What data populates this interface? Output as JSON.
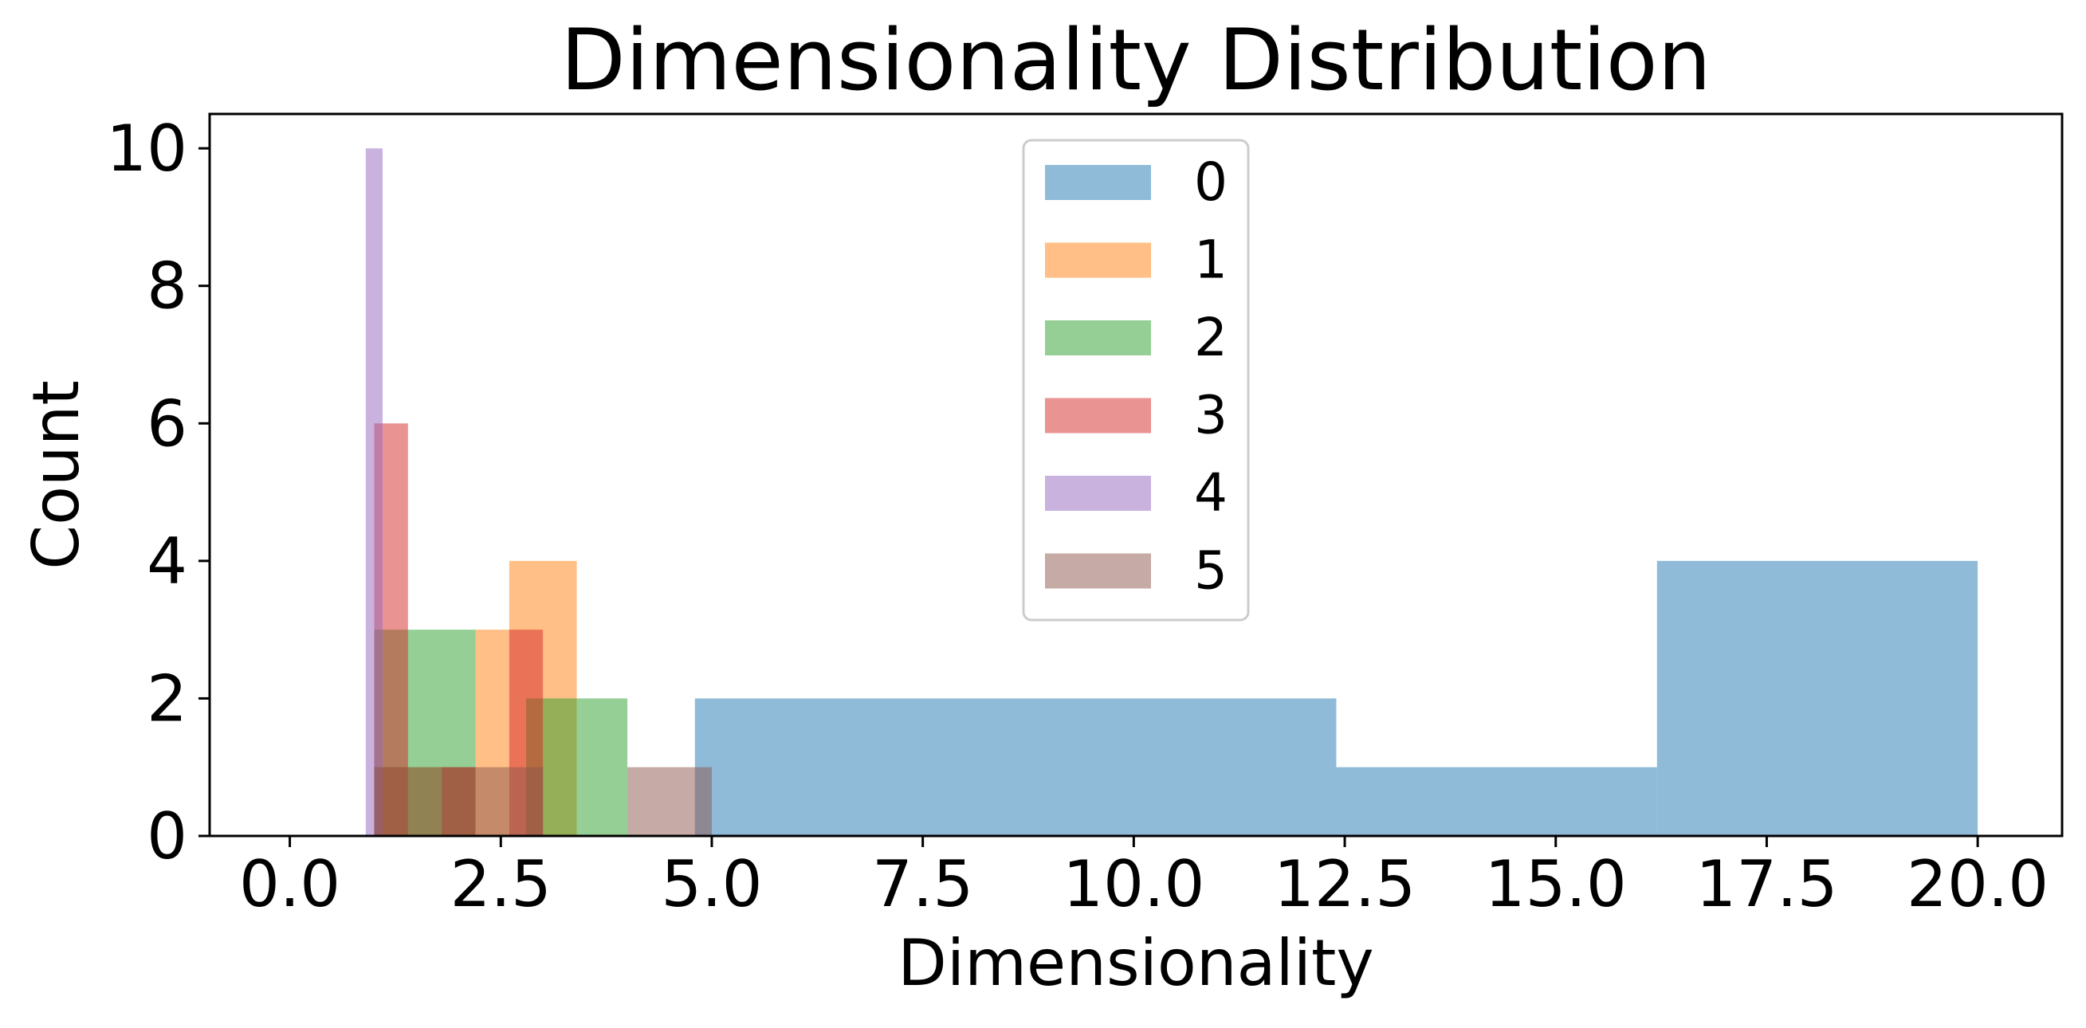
{
  "chart_data": {
    "type": "histogram",
    "title": "Dimensionality Distribution",
    "xlabel": "Dimensionality",
    "ylabel": "Count",
    "xlim": [
      -0.95,
      21.0
    ],
    "ylim": [
      0,
      10.5
    ],
    "xticks": [
      0.0,
      2.5,
      5.0,
      7.5,
      10.0,
      12.5,
      15.0,
      17.5,
      20.0
    ],
    "xtick_labels": [
      "0.0",
      "2.5",
      "5.0",
      "7.5",
      "10.0",
      "12.5",
      "15.0",
      "17.5",
      "20.0"
    ],
    "yticks": [
      0,
      2,
      4,
      6,
      8,
      10
    ],
    "ytick_labels": [
      "0",
      "2",
      "4",
      "6",
      "8",
      "10"
    ],
    "grid": false,
    "legend_position": "top-center",
    "bar_alpha": 0.5,
    "series": [
      {
        "name": "0",
        "color": "#1f77b4",
        "bins": [
          {
            "x0": 4.8,
            "x1": 8.6,
            "count": 2
          },
          {
            "x0": 8.6,
            "x1": 12.4,
            "count": 2
          },
          {
            "x0": 12.4,
            "x1": 16.2,
            "count": 1
          },
          {
            "x0": 16.2,
            "x1": 20.0,
            "count": 4
          }
        ]
      },
      {
        "name": "1",
        "color": "#ff7f0e",
        "bins": [
          {
            "x0": 1.0,
            "x1": 1.4,
            "count": 1
          },
          {
            "x0": 1.4,
            "x1": 1.8,
            "count": 1
          },
          {
            "x0": 1.8,
            "x1": 2.2,
            "count": 1
          },
          {
            "x0": 2.2,
            "x1": 2.6,
            "count": 3
          },
          {
            "x0": 2.6,
            "x1": 3.0,
            "count": 4
          },
          {
            "x0": 3.0,
            "x1": 3.4,
            "count": 4
          }
        ]
      },
      {
        "name": "2",
        "color": "#2ca02c",
        "bins": [
          {
            "x0": 1.0,
            "x1": 1.6,
            "count": 3
          },
          {
            "x0": 1.6,
            "x1": 2.2,
            "count": 3
          },
          {
            "x0": 2.8,
            "x1": 3.4,
            "count": 2
          },
          {
            "x0": 3.4,
            "x1": 4.0,
            "count": 2
          }
        ]
      },
      {
        "name": "3",
        "color": "#d62728",
        "bins": [
          {
            "x0": 1.0,
            "x1": 1.4,
            "count": 6
          },
          {
            "x0": 1.8,
            "x1": 2.2,
            "count": 1
          },
          {
            "x0": 2.6,
            "x1": 3.0,
            "count": 3
          }
        ]
      },
      {
        "name": "4",
        "color": "#9467bd",
        "bins": [
          {
            "x0": 0.9,
            "x1": 1.1,
            "count": 10
          }
        ]
      },
      {
        "name": "5",
        "color": "#8c564b",
        "bins": [
          {
            "x0": 1.0,
            "x1": 1.4,
            "count": 1
          },
          {
            "x0": 1.4,
            "x1": 2.0,
            "count": 1
          },
          {
            "x0": 2.0,
            "x1": 3.0,
            "count": 1
          },
          {
            "x0": 4.0,
            "x1": 5.0,
            "count": 1
          }
        ]
      }
    ]
  }
}
